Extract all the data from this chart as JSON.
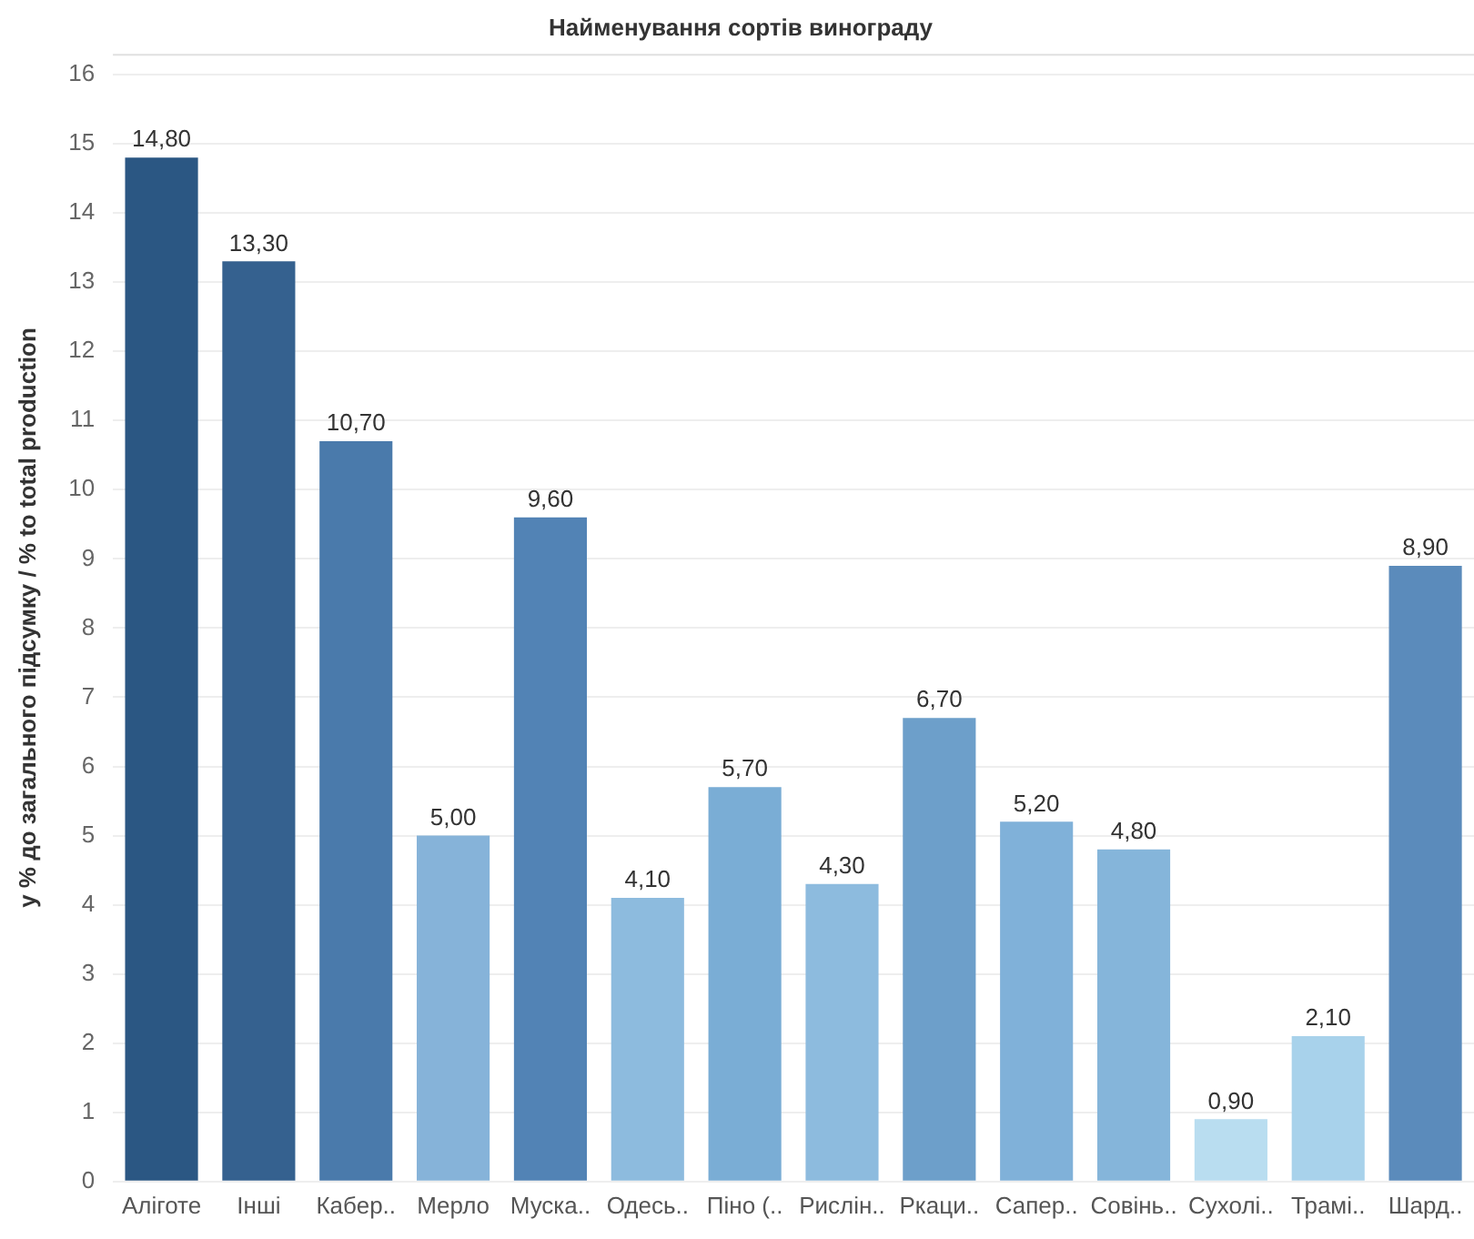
{
  "chart_data": {
    "type": "bar",
    "title": "Найменування сортів винограду",
    "ylabel": "у % до загального підсумку / % to total production",
    "categories": [
      "Аліготе",
      "Інші",
      "Кабер..",
      "Мерло",
      "Муска..",
      "Одесь..",
      "Піно (..",
      "Рислін..",
      "Ркаци..",
      "Сапер..",
      "Совінь..",
      "Сухолі..",
      "Трамі..",
      "Шард.."
    ],
    "values": [
      14.8,
      13.3,
      10.7,
      5.0,
      9.6,
      4.1,
      5.7,
      4.3,
      6.7,
      5.2,
      4.8,
      0.9,
      2.1,
      8.9
    ],
    "value_labels": [
      "14,80",
      "13,30",
      "10,70",
      "5,00",
      "9,60",
      "4,10",
      "5,70",
      "4,30",
      "6,70",
      "5,20",
      "4,80",
      "0,90",
      "2,10",
      "8,90"
    ],
    "colors": [
      "#2b5783",
      "#35618f",
      "#4a7aab",
      "#86b3d9",
      "#5283b5",
      "#8dbbde",
      "#7aadd5",
      "#8dbbde",
      "#6d9fca",
      "#80b1d9",
      "#85b5da",
      "#b9ddf0",
      "#a8d2eb",
      "#5b8bbb"
    ],
    "ylim": [
      0,
      16.3
    ],
    "yticks": [
      0,
      1,
      2,
      3,
      4,
      5,
      6,
      7,
      8,
      9,
      10,
      11,
      12,
      13,
      14,
      15,
      16
    ],
    "grid": "y",
    "legend": false
  }
}
